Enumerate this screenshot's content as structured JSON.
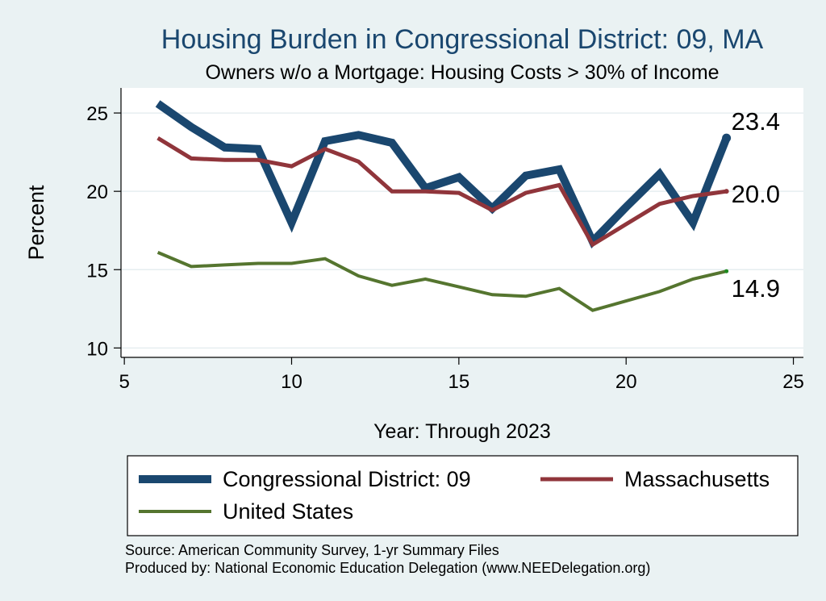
{
  "chart_data": {
    "type": "line",
    "title": "Housing Burden in Congressional District:  09, MA",
    "subtitle": "Owners w/o a Mortgage: Housing Costs > 30% of Income",
    "xlabel": "Year: Through 2023",
    "ylabel": "Percent",
    "xlim": [
      4.9,
      25.3
    ],
    "ylim": [
      9.4,
      26.6
    ],
    "xticks": [
      5,
      10,
      15,
      20,
      25
    ],
    "yticks": [
      10,
      15,
      20,
      25
    ],
    "grid": true,
    "legend_position": "bottom",
    "series": [
      {
        "name": "Congressional District:  09",
        "color": "#1a476f",
        "x": [
          6,
          7,
          8,
          9,
          10,
          11,
          12,
          13,
          14,
          15,
          16,
          17,
          18,
          19,
          20,
          21,
          22,
          23
        ],
        "y": [
          25.6,
          24.1,
          22.8,
          22.7,
          18.0,
          23.2,
          23.6,
          23.1,
          20.2,
          20.9,
          18.9,
          21.0,
          21.4,
          16.8,
          19.0,
          21.1,
          18.0,
          23.4
        ],
        "end_label": "23.4"
      },
      {
        "name": "Massachusetts",
        "color": "#90353b",
        "x": [
          6,
          7,
          8,
          9,
          10,
          11,
          12,
          13,
          14,
          15,
          16,
          17,
          18,
          19,
          20,
          21,
          22,
          23
        ],
        "y": [
          23.4,
          22.1,
          22.0,
          22.0,
          21.6,
          22.7,
          21.9,
          20.0,
          20.0,
          19.9,
          18.8,
          19.9,
          20.4,
          16.6,
          17.9,
          19.2,
          19.7,
          20.0
        ],
        "end_label": "20.0"
      },
      {
        "name": "United States",
        "color": "#55752f",
        "x": [
          6,
          7,
          8,
          9,
          10,
          11,
          12,
          13,
          14,
          15,
          16,
          17,
          18,
          19,
          20,
          21,
          22,
          23
        ],
        "y": [
          16.1,
          15.2,
          15.3,
          15.4,
          15.4,
          15.7,
          14.6,
          14.0,
          14.4,
          13.9,
          13.4,
          13.3,
          13.8,
          12.4,
          13.0,
          13.6,
          14.4,
          14.9
        ],
        "end_label": "14.9"
      }
    ]
  },
  "notes": {
    "source": "Source: American Community Survey, 1-yr Summary Files",
    "produced": "Produced by: National Economic Education Delegation (www.NEEDelegation.org)"
  }
}
